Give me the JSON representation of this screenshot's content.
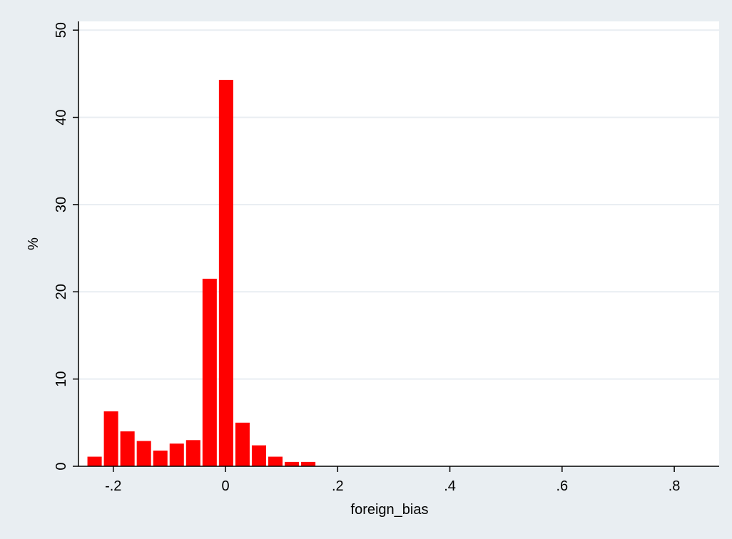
{
  "chart_data": {
    "type": "bar",
    "title": "",
    "xlabel": "foreign_bias",
    "ylabel": "%",
    "xlim": [
      -0.262,
      0.88
    ],
    "ylim": [
      0,
      51
    ],
    "x_ticks": [
      -0.2,
      0,
      0.2,
      0.4,
      0.6,
      0.8
    ],
    "x_tick_labels": [
      "-.2",
      "0",
      ".2",
      ".4",
      ".6",
      ".8"
    ],
    "y_ticks": [
      0,
      10,
      20,
      30,
      40,
      50
    ],
    "y_tick_labels": [
      "0",
      "10",
      "20",
      "30",
      "40",
      "50"
    ],
    "grid": true,
    "bar_color": "#ff0000",
    "plot_background": "#ffffff",
    "page_background": "#e9eef2",
    "grid_color": "#e9eef2",
    "bin_width": 0.0293,
    "bins": [
      {
        "x": -0.2333,
        "value": 1.1
      },
      {
        "x": -0.204,
        "value": 6.3
      },
      {
        "x": -0.1747,
        "value": 4.0
      },
      {
        "x": -0.1454,
        "value": 2.9
      },
      {
        "x": -0.1161,
        "value": 1.8
      },
      {
        "x": -0.0868,
        "value": 2.6
      },
      {
        "x": -0.0575,
        "value": 3.0
      },
      {
        "x": -0.0282,
        "value": 21.5
      },
      {
        "x": 0.0011,
        "value": 44.3
      },
      {
        "x": 0.0304,
        "value": 5.0
      },
      {
        "x": 0.0597,
        "value": 2.4
      },
      {
        "x": 0.089,
        "value": 1.1
      },
      {
        "x": 0.1183,
        "value": 0.5
      },
      {
        "x": 0.1476,
        "value": 0.5
      }
    ]
  }
}
